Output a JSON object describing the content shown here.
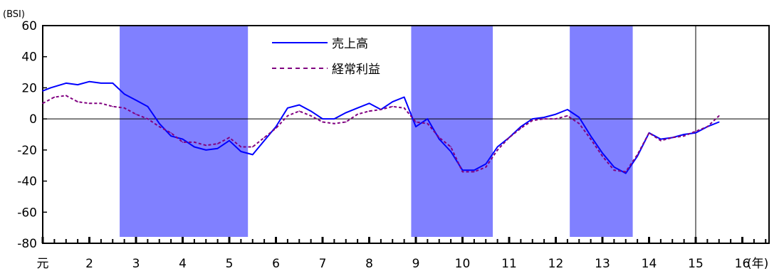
{
  "chart_data": {
    "type": "line",
    "y_unit_label": "(BSI)",
    "x_unit_label": "(年)",
    "ylim": [
      -80,
      60
    ],
    "xlim": [
      0,
      16
    ],
    "y_ticks": [
      60,
      40,
      20,
      0,
      -20,
      -40,
      -60,
      -80
    ],
    "x_tick_labels": [
      {
        "x": 0,
        "label": "元"
      },
      {
        "x": 1,
        "label": "2"
      },
      {
        "x": 2,
        "label": "3"
      },
      {
        "x": 3,
        "label": "4"
      },
      {
        "x": 4,
        "label": "5"
      },
      {
        "x": 5,
        "label": "6"
      },
      {
        "x": 6,
        "label": "7"
      },
      {
        "x": 7,
        "label": "8"
      },
      {
        "x": 8,
        "label": "9"
      },
      {
        "x": 9,
        "label": "10"
      },
      {
        "x": 10,
        "label": "11"
      },
      {
        "x": 11,
        "label": "12"
      },
      {
        "x": 12,
        "label": "13"
      },
      {
        "x": 13,
        "label": "14"
      },
      {
        "x": 14,
        "label": "15"
      },
      {
        "x": 15,
        "label": "16"
      }
    ],
    "shaded_periods": [
      [
        1.65,
        4.4
      ],
      [
        7.9,
        9.65
      ],
      [
        11.3,
        12.65
      ]
    ],
    "vertical_marker_x": 14,
    "legend_position": "top-center",
    "grid": false,
    "series": [
      {
        "name": "売上高",
        "color": "#0000ff",
        "style": "solid",
        "points": [
          [
            0,
            18
          ],
          [
            0.17,
            20
          ],
          [
            0.5,
            23
          ],
          [
            0.75,
            22
          ],
          [
            1,
            24
          ],
          [
            1.25,
            23
          ],
          [
            1.5,
            23
          ],
          [
            1.75,
            16
          ],
          [
            2,
            12
          ],
          [
            2.25,
            8
          ],
          [
            2.5,
            -3
          ],
          [
            2.75,
            -11
          ],
          [
            3,
            -13
          ],
          [
            3.25,
            -18
          ],
          [
            3.5,
            -20
          ],
          [
            3.75,
            -19
          ],
          [
            4,
            -14
          ],
          [
            4.25,
            -21
          ],
          [
            4.5,
            -23
          ],
          [
            4.75,
            -14
          ],
          [
            5,
            -5
          ],
          [
            5.25,
            7
          ],
          [
            5.5,
            9
          ],
          [
            5.75,
            5
          ],
          [
            6,
            0
          ],
          [
            6.25,
            0
          ],
          [
            6.5,
            4
          ],
          [
            6.75,
            7
          ],
          [
            7,
            10
          ],
          [
            7.25,
            6
          ],
          [
            7.5,
            11
          ],
          [
            7.75,
            14
          ],
          [
            8,
            -5
          ],
          [
            8.25,
            0
          ],
          [
            8.5,
            -13
          ],
          [
            8.75,
            -21
          ],
          [
            9,
            -33
          ],
          [
            9.25,
            -33
          ],
          [
            9.5,
            -29
          ],
          [
            9.75,
            -18
          ],
          [
            10,
            -12
          ],
          [
            10.25,
            -5
          ],
          [
            10.5,
            0
          ],
          [
            10.75,
            1
          ],
          [
            11,
            3
          ],
          [
            11.25,
            6
          ],
          [
            11.5,
            1
          ],
          [
            11.75,
            -11
          ],
          [
            12,
            -22
          ],
          [
            12.25,
            -31
          ],
          [
            12.5,
            -35
          ],
          [
            12.75,
            -24
          ],
          [
            13,
            -9
          ],
          [
            13.25,
            -13
          ],
          [
            13.5,
            -12
          ],
          [
            13.75,
            -10
          ],
          [
            14,
            -9
          ],
          [
            14.25,
            -5
          ],
          [
            14.5,
            -2
          ]
        ]
      },
      {
        "name": "経常利益",
        "color": "#800080",
        "style": "dashed",
        "points": [
          [
            0,
            10
          ],
          [
            0.25,
            14
          ],
          [
            0.5,
            15
          ],
          [
            0.75,
            11
          ],
          [
            1,
            10
          ],
          [
            1.25,
            10
          ],
          [
            1.5,
            8
          ],
          [
            1.75,
            7
          ],
          [
            2,
            3
          ],
          [
            2.25,
            0
          ],
          [
            2.5,
            -5
          ],
          [
            2.75,
            -9
          ],
          [
            3,
            -15
          ],
          [
            3.25,
            -15
          ],
          [
            3.5,
            -17
          ],
          [
            3.75,
            -16
          ],
          [
            4,
            -12
          ],
          [
            4.25,
            -18
          ],
          [
            4.5,
            -18
          ],
          [
            4.75,
            -12
          ],
          [
            5,
            -6
          ],
          [
            5.25,
            2
          ],
          [
            5.5,
            5
          ],
          [
            5.75,
            2
          ],
          [
            6,
            -2
          ],
          [
            6.25,
            -3
          ],
          [
            6.5,
            -2
          ],
          [
            6.75,
            3
          ],
          [
            7,
            5
          ],
          [
            7.25,
            6
          ],
          [
            7.5,
            8
          ],
          [
            7.75,
            7
          ],
          [
            8,
            -2
          ],
          [
            8.25,
            -3
          ],
          [
            8.5,
            -12
          ],
          [
            8.75,
            -18
          ],
          [
            9,
            -34
          ],
          [
            9.25,
            -34
          ],
          [
            9.5,
            -31
          ],
          [
            9.75,
            -20
          ],
          [
            10,
            -12
          ],
          [
            10.25,
            -6
          ],
          [
            10.5,
            -1
          ],
          [
            10.75,
            0
          ],
          [
            11,
            0
          ],
          [
            11.25,
            2
          ],
          [
            11.5,
            -3
          ],
          [
            11.75,
            -13
          ],
          [
            12,
            -24
          ],
          [
            12.25,
            -33
          ],
          [
            12.5,
            -34
          ],
          [
            12.75,
            -23
          ],
          [
            13,
            -9
          ],
          [
            13.25,
            -14
          ],
          [
            13.5,
            -12
          ],
          [
            13.75,
            -11
          ],
          [
            14,
            -8
          ],
          [
            14.25,
            -5
          ],
          [
            14.5,
            2
          ]
        ]
      }
    ]
  }
}
